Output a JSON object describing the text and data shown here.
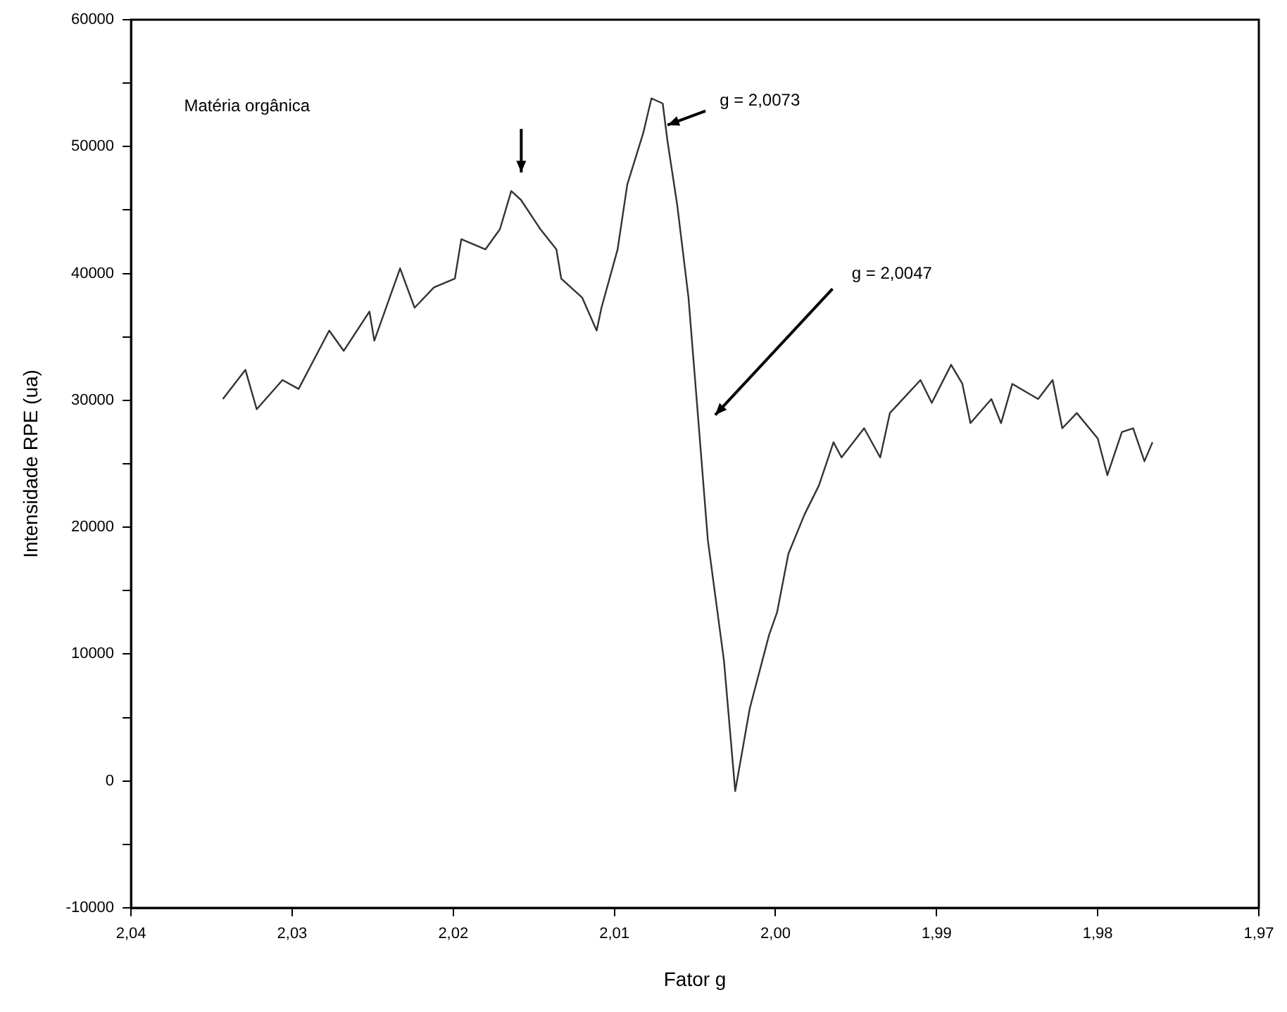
{
  "chart_data": {
    "type": "line",
    "xlabel": "Fator g",
    "ylabel": "Intensidade RPE (ua)",
    "xlim": [
      2.04,
      1.97
    ],
    "xticks": [
      {
        "value": 2.04,
        "label": "2,04"
      },
      {
        "value": 2.03,
        "label": "2,03"
      },
      {
        "value": 2.02,
        "label": "2,02"
      },
      {
        "value": 2.01,
        "label": "2,01"
      },
      {
        "value": 2.0,
        "label": "2,00"
      },
      {
        "value": 1.99,
        "label": "1,99"
      },
      {
        "value": 1.98,
        "label": "1,98"
      },
      {
        "value": 1.97,
        "label": "1,97"
      }
    ],
    "ylim": [
      -10000,
      60000
    ],
    "yticks": [
      -10000,
      {
        "value": -5000,
        "label": null
      },
      0,
      {
        "value": 5000,
        "label": null
      },
      10000,
      {
        "value": 15000,
        "label": null
      },
      20000,
      {
        "value": 25000,
        "label": null
      },
      30000,
      {
        "value": 35000,
        "label": null
      },
      40000,
      {
        "value": 45000,
        "label": null
      },
      50000,
      {
        "value": 55000,
        "label": null
      },
      60000
    ],
    "grid": false,
    "legend": false,
    "marker": "none",
    "line_style": "solid",
    "annotations": [
      "Matéria orgânica",
      {
        "text": "g = 2,0073",
        "x": 2.0067,
        "y": 51700
      },
      "g = 2,0047"
    ],
    "series": [
      {
        "color": "#333333",
        "x": [
          2.0343,
          2.0329,
          2.0322,
          2.0306,
          2.0296,
          2.0277,
          2.0268,
          2.0252,
          2.0249,
          2.0233,
          2.0224,
          2.0212,
          2.0199,
          2.0195,
          2.018,
          2.0171,
          2.0164,
          2.0158,
          2.0146,
          2.0136,
          2.0133,
          2.012,
          2.0111,
          2.0108,
          2.0098,
          2.0092,
          2.0082,
          2.0077,
          2.007,
          2.0067,
          2.0061,
          2.0054,
          2.0048,
          2.0042,
          2.0032,
          2.0025,
          2.0016,
          2.0004,
          1.9999,
          1.9992,
          1.9982,
          1.9973,
          1.9964,
          1.9959,
          1.9945,
          1.9935,
          1.9929,
          1.991,
          1.9903,
          1.9891,
          1.9884,
          1.9879,
          1.9866,
          1.986,
          1.9853,
          1.9837,
          1.9828,
          1.9822,
          1.9813,
          1.98,
          1.9794,
          1.9785,
          1.9778,
          1.9771,
          1.9766
        ],
        "values": [
          30100,
          32400,
          29300,
          31600,
          30900,
          35500,
          33900,
          37000,
          34700,
          40400,
          37300,
          38900,
          39600,
          42700,
          41900,
          43500,
          46500,
          45800,
          43500,
          41900,
          39600,
          38100,
          35500,
          37300,
          41900,
          47000,
          51100,
          53800,
          53400,
          50400,
          45400,
          38100,
          28600,
          19000,
          9500,
          -800,
          5700,
          11500,
          13300,
          17900,
          21000,
          23300,
          26700,
          25500,
          27800,
          25500,
          29000,
          31600,
          29800,
          32800,
          31300,
          28200,
          30100,
          28200,
          31300,
          30100,
          31600,
          27800,
          29000,
          27000,
          24100,
          27500,
          27800,
          25200,
          26700
        ]
      }
    ]
  }
}
